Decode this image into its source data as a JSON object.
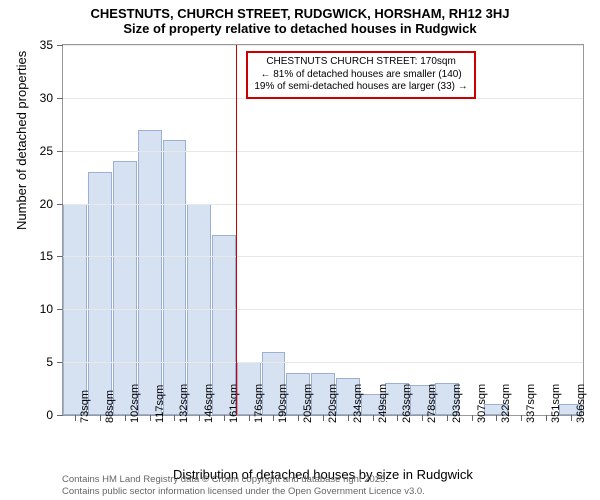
{
  "title": {
    "line1": "CHESTNUTS, CHURCH STREET, RUDGWICK, HORSHAM, RH12 3HJ",
    "line2": "Size of property relative to detached houses in Rudgwick"
  },
  "chart": {
    "type": "histogram",
    "background_color": "#ffffff",
    "grid_color": "#e8e8e8",
    "axis_color": "#999999",
    "bar_fill": "#d6e1f2",
    "bar_border": "#9db0d3",
    "ylabel": "Number of detached properties",
    "xlabel": "Distribution of detached houses by size in Rudgwick",
    "ylim": [
      0,
      35
    ],
    "ytick_step": 5,
    "title_fontsize": 13,
    "label_fontsize": 13,
    "tick_fontsize": 11,
    "categories": [
      "73sqm",
      "88sqm",
      "102sqm",
      "117sqm",
      "132sqm",
      "146sqm",
      "161sqm",
      "176sqm",
      "190sqm",
      "205sqm",
      "220sqm",
      "234sqm",
      "249sqm",
      "263sqm",
      "278sqm",
      "293sqm",
      "307sqm",
      "322sqm",
      "337sqm",
      "351sqm",
      "366sqm"
    ],
    "values": [
      20,
      23,
      24,
      27,
      26,
      20,
      17,
      5,
      6,
      4,
      4,
      3.5,
      2,
      3,
      2.8,
      3,
      0,
      1,
      0,
      0,
      1
    ],
    "reference_line": {
      "index": 7,
      "color": "#cc0000"
    },
    "callout": {
      "lines": [
        "CHESTNUTS CHURCH STREET: 170sqm",
        "← 81% of detached houses are smaller (140)",
        "19% of semi-detached houses are larger (33) →"
      ],
      "border_color": "#cc0000",
      "fontsize": 10
    }
  },
  "attribution": {
    "line1": "Contains HM Land Registry data © Crown copyright and database right 2025.",
    "line2": "Contains public sector information licensed under the Open Government Licence v3.0."
  }
}
